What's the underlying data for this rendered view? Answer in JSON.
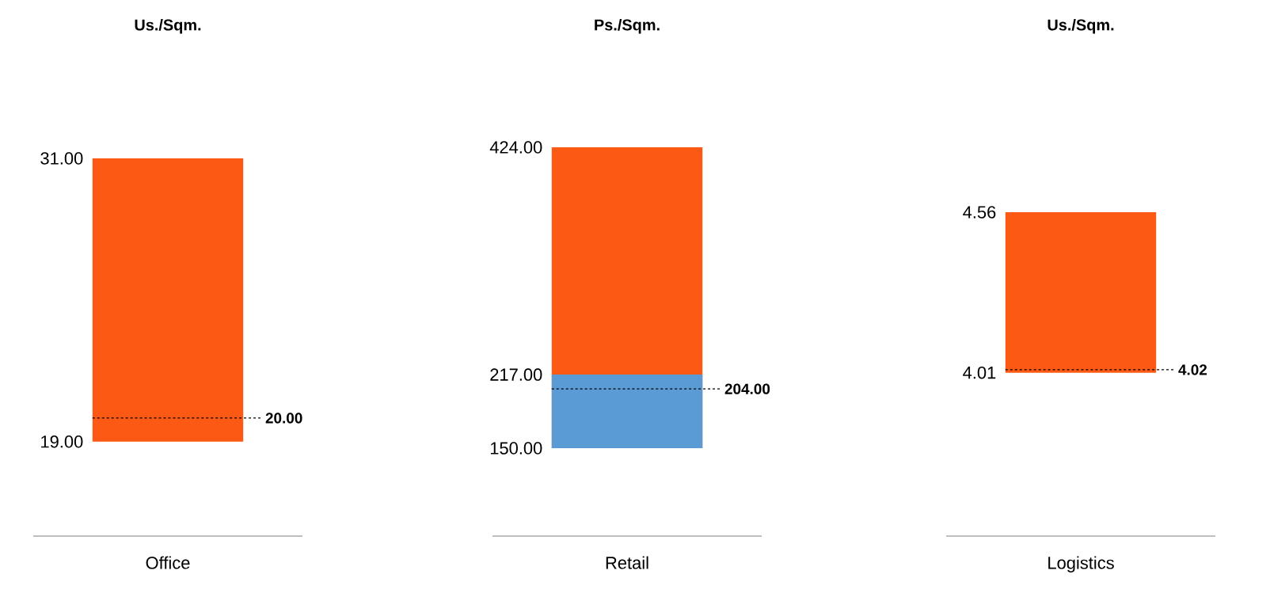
{
  "chart_data": [
    {
      "type": "bar",
      "title": "Us./Sqm.",
      "categories": [
        "Office"
      ],
      "ylim": [
        15,
        31
      ],
      "yticks": [
        {
          "value": 19,
          "label": "19.00"
        },
        {
          "value": 31,
          "label": "31.00"
        }
      ],
      "series": [
        {
          "color": "#fc5a14",
          "base": [
            19
          ],
          "values": [
            12
          ]
        }
      ],
      "ref_lines": [
        {
          "axis": "y",
          "value": 20,
          "label": "20.00",
          "color": "#000000",
          "line_style": "dashed"
        }
      ]
    },
    {
      "type": "bar",
      "title": "Ps./Sqm.",
      "categories": [
        "Retail"
      ],
      "ylim": [
        70,
        424
      ],
      "yticks": [
        {
          "value": 150,
          "label": "150.00"
        },
        {
          "value": 217,
          "label": "217.00"
        },
        {
          "value": 424,
          "label": "424.00"
        }
      ],
      "series": [
        {
          "color": "#fc5a14",
          "base": [
            150
          ],
          "values": [
            274
          ]
        },
        {
          "color": "#5b9bd5",
          "base": [
            150
          ],
          "values": [
            67
          ]
        }
      ],
      "ref_lines": [
        {
          "axis": "y",
          "value": 204,
          "label": "204.00",
          "color": "#000000",
          "line_style": "dashed"
        }
      ]
    },
    {
      "type": "bar",
      "title": "Us./Sqm.",
      "categories": [
        "Logistics"
      ],
      "ylim": [
        3.45,
        4.56
      ],
      "yticks": [
        {
          "value": 4.01,
          "label": "4.01"
        },
        {
          "value": 4.56,
          "label": "4.56"
        }
      ],
      "series": [
        {
          "color": "#fc5a14",
          "base": [
            4.01
          ],
          "values": [
            0.55
          ]
        }
      ],
      "ref_lines": [
        {
          "axis": "y",
          "value": 4.02,
          "label": "4.02",
          "color": "#000000",
          "line_style": "dashed"
        }
      ]
    }
  ]
}
